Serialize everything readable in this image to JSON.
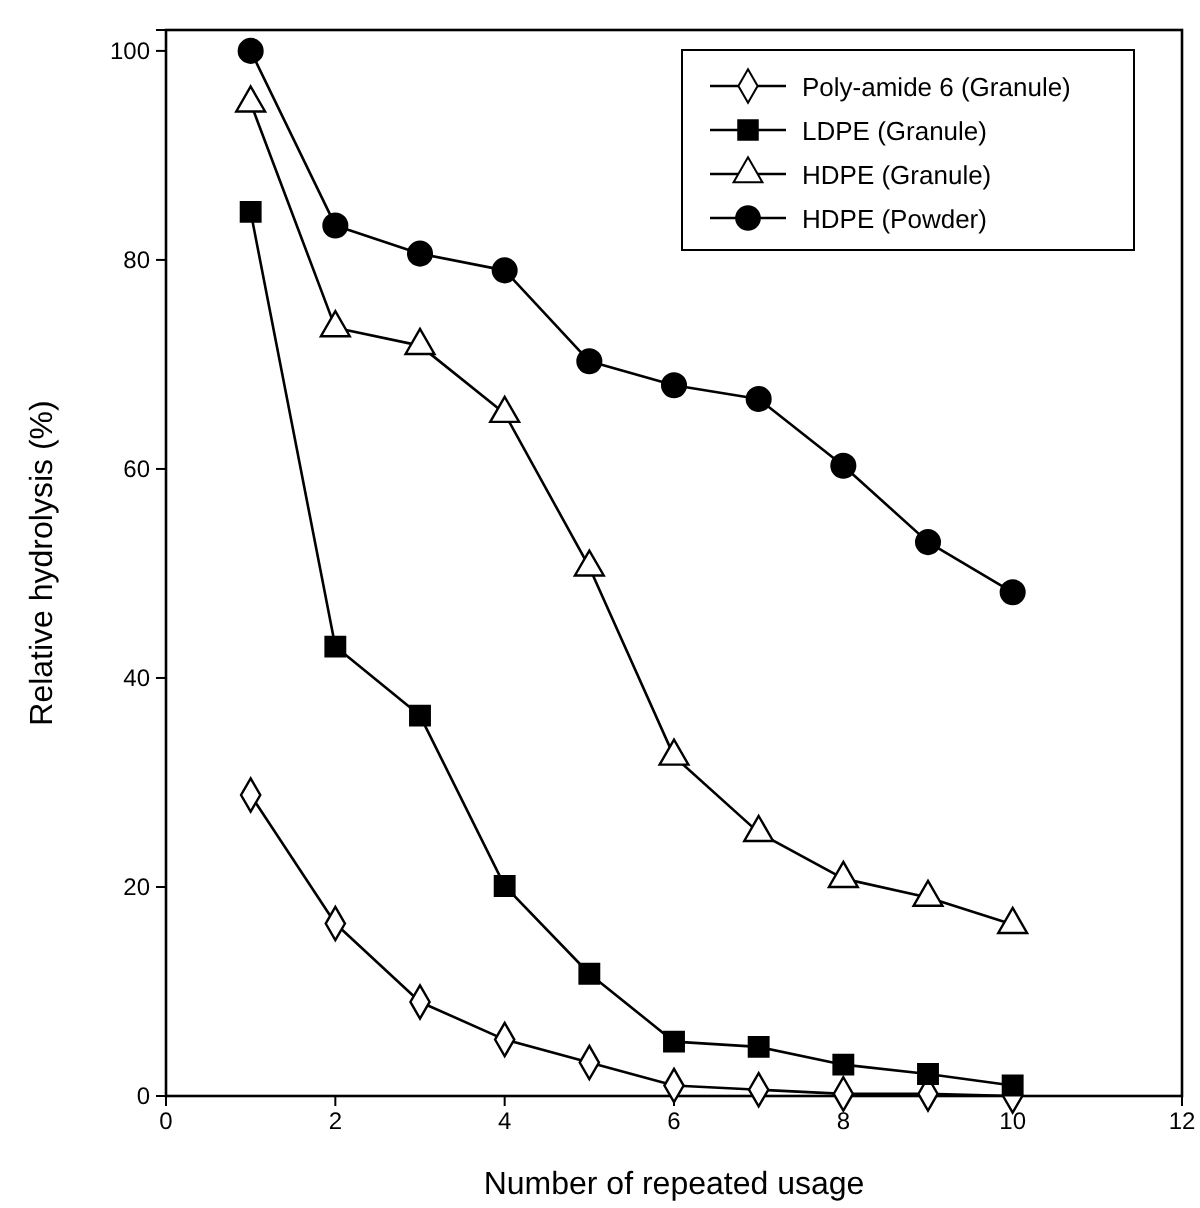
{
  "chart_data": {
    "type": "line",
    "xlabel": "Number of repeated usage",
    "ylabel": "Relative hydrolysis (%)",
    "x": [
      1,
      2,
      3,
      4,
      5,
      6,
      7,
      8,
      9,
      10
    ],
    "xlim": [
      0,
      12
    ],
    "xticks": [
      0,
      2,
      4,
      6,
      8,
      10,
      12
    ],
    "ylim": [
      0,
      102
    ],
    "yticks": [
      0,
      20,
      40,
      60,
      80,
      100
    ],
    "grid": false,
    "legend": "top right",
    "line_style": "solid",
    "series": [
      {
        "name": "Poly-amide 6 (Granule)",
        "color": "#000000",
        "marker": "diamond",
        "values": [
          28.8,
          16.5,
          9,
          5.4,
          3.2,
          1,
          0.6,
          0.2,
          0.2,
          0
        ]
      },
      {
        "name": "LDPE (Granule)",
        "color": "#000000",
        "marker": "square",
        "values": [
          84.6,
          43,
          36.4,
          20.1,
          11.7,
          5.2,
          4.7,
          3,
          2.1,
          1
        ]
      },
      {
        "name": "HDPE (Granule)",
        "color": "#000000",
        "marker": "triangle",
        "values": [
          95,
          73.5,
          71.8,
          65.3,
          50.6,
          32.5,
          25.2,
          20.8,
          19,
          16.4
        ]
      },
      {
        "name": "HDPE (Powder)",
        "color": "#000000",
        "marker": "circle",
        "values": [
          100,
          83.3,
          80.6,
          79,
          70.3,
          68,
          66.7,
          60.3,
          53,
          48.2
        ]
      }
    ]
  }
}
